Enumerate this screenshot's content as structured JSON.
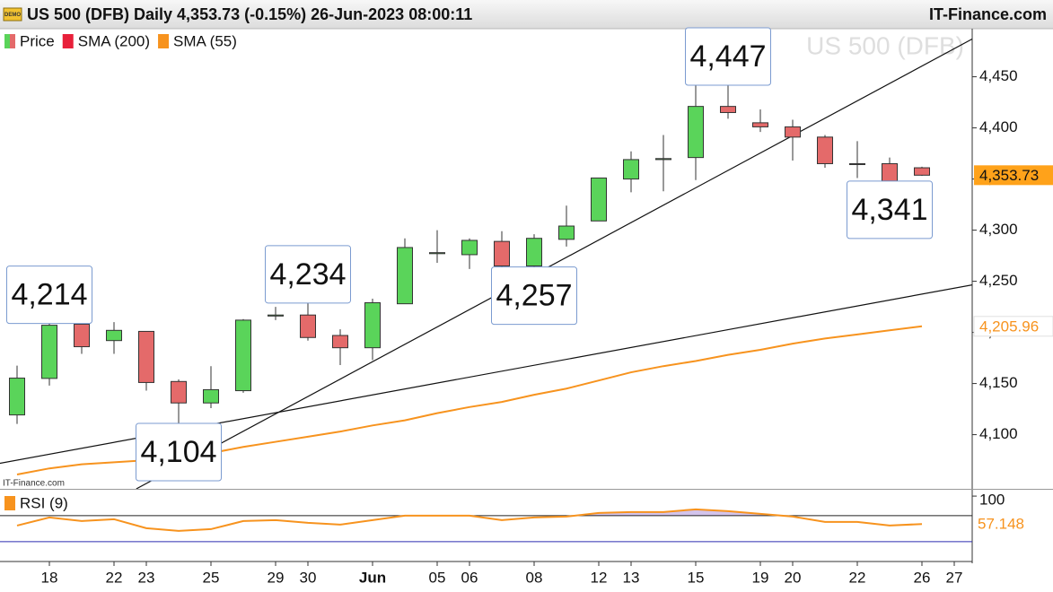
{
  "header": {
    "badge": "DEMO",
    "title": "US 500 (DFB) Daily 4,353.73 (-0.15%) 26-Jun-2023 08:00:11",
    "brand": "IT-Finance.com"
  },
  "chart_data": [
    {
      "type": "candlestick",
      "watermark": "US 500 (DFB)",
      "source": "IT-Finance.com",
      "categories": [
        null,
        "18",
        null,
        "22",
        "23",
        null,
        "25",
        null,
        "29",
        "30",
        null,
        "Jun",
        null,
        "05",
        "06",
        null,
        "08",
        null,
        "12",
        "13",
        null,
        "15",
        null,
        "19",
        "20",
        null,
        "22",
        null,
        "26",
        "27"
      ],
      "series": [
        {
          "name": "Price",
          "up_color": "#5ad45a",
          "down_color": "#e46a6a",
          "open": [
            4119.3,
            4155,
            4208,
            4192,
            4201,
            4152,
            4131,
            4143,
            4216,
            4217,
            4197,
            4185,
            4228,
            4277,
            4276,
            4289,
            4265,
            4291,
            4309,
            4350,
            4369,
            4371,
            4421,
            4405,
            4401,
            4391,
            4365,
            4365,
            4361,
            null
          ],
          "high": [
            4167.5,
            4214,
            4216,
            4210,
            4201,
            4154,
            4167,
            4213,
            4225,
            4234,
            4203,
            4233,
            4292,
            4300,
            4292,
            4299,
            4296,
            4324,
            4351,
            4377,
            4393,
            4442,
            4447,
            4418,
            4408,
            4393,
            4387,
            4371,
            4362,
            null
          ],
          "low": [
            4110.5,
            4148,
            4179,
            4179,
            4143,
            4104,
            4126,
            4141,
            4212,
            4192,
            4168,
            4173,
            4228,
            4268,
            4262,
            4259,
            4257,
            4284,
            4309,
            4337,
            4338,
            4349,
            4409,
            4396,
            4368,
            4361,
            4351,
            4341,
            4353,
            null
          ],
          "close": [
            4155.3,
            4207,
            4186,
            4202,
            4151,
            4131,
            4144,
            4212,
            4217,
            4195,
            4185,
            4229,
            4283,
            4278,
            4290,
            4265,
            4292,
            4304,
            4351,
            4369,
            4370,
            4421,
            4415,
            4401,
            4391,
            4365,
            4365,
            4348,
            4353.73,
            null
          ],
          "value_label": "4,353.73"
        }
      ],
      "sma": [
        {
          "name": "SMA (200)",
          "color": "#e8203a"
        },
        {
          "name": "SMA (55)",
          "color": "#f7931e",
          "values": [
            4061,
            4067,
            4071,
            4073,
            4075,
            4077,
            4082,
            4088,
            4093,
            4098,
            4103,
            4109,
            4114,
            4121,
            4127,
            4132,
            4139,
            4145,
            4153,
            4161,
            4167,
            4172,
            4178,
            4183,
            4189,
            4194,
            4198,
            4202,
            4205.96,
            null
          ],
          "value_label": "4,205.96"
        }
      ],
      "trendlines": [
        {
          "color": "#111111",
          "points": [
            [
              3.69,
              4047
            ],
            [
              29.56,
              4487
            ]
          ]
        },
        {
          "color": "#111111",
          "points": [
            [
              -0.53,
              4072
            ],
            [
              29.56,
              4246.5
            ]
          ]
        }
      ],
      "annotations": [
        {
          "label": "4,214",
          "value": 4214
        },
        {
          "label": "4,234",
          "value": 4234
        },
        {
          "label": "4,104",
          "value": 4104
        },
        {
          "label": "4,257",
          "value": 4257
        },
        {
          "label": "4,447",
          "value": 4447
        },
        {
          "label": "4,341",
          "value": 4341
        }
      ],
      "ylim": [
        4047,
        4497
      ],
      "yticks": [
        {
          "value": 4100,
          "label": "4,100"
        },
        {
          "value": 4150,
          "label": "4,150"
        },
        {
          "value": 4200,
          "label": "4,200"
        },
        {
          "value": 4250,
          "label": "4,250"
        },
        {
          "value": 4300,
          "label": "4,300"
        },
        {
          "value": 4350,
          "label": "4,350"
        },
        {
          "value": 4400,
          "label": "4,400"
        },
        {
          "value": 4450,
          "label": "4,450"
        }
      ]
    },
    {
      "type": "line",
      "name": "RSI (9)",
      "color": "#f7931e",
      "fill_color": "#d3c4ec",
      "values": [
        54.8,
        67.2,
        61.7,
        64.5,
        50.7,
        46.6,
        49.3,
        61.7,
        63.1,
        59,
        56.2,
        63.1,
        70,
        70,
        70,
        63.1,
        67.2,
        68.6,
        74.1,
        75.5,
        75.5,
        79.7,
        76.9,
        72.8,
        68.6,
        60.3,
        60.3,
        54.8,
        57.148,
        null
      ],
      "value_label": "57.148",
      "levels": [
        {
          "value": 70,
          "color": "#222222"
        },
        {
          "value": 30,
          "color": "#2b2bb0"
        }
      ],
      "ylim": [
        1,
        107
      ],
      "yticks": [
        100
      ]
    }
  ]
}
